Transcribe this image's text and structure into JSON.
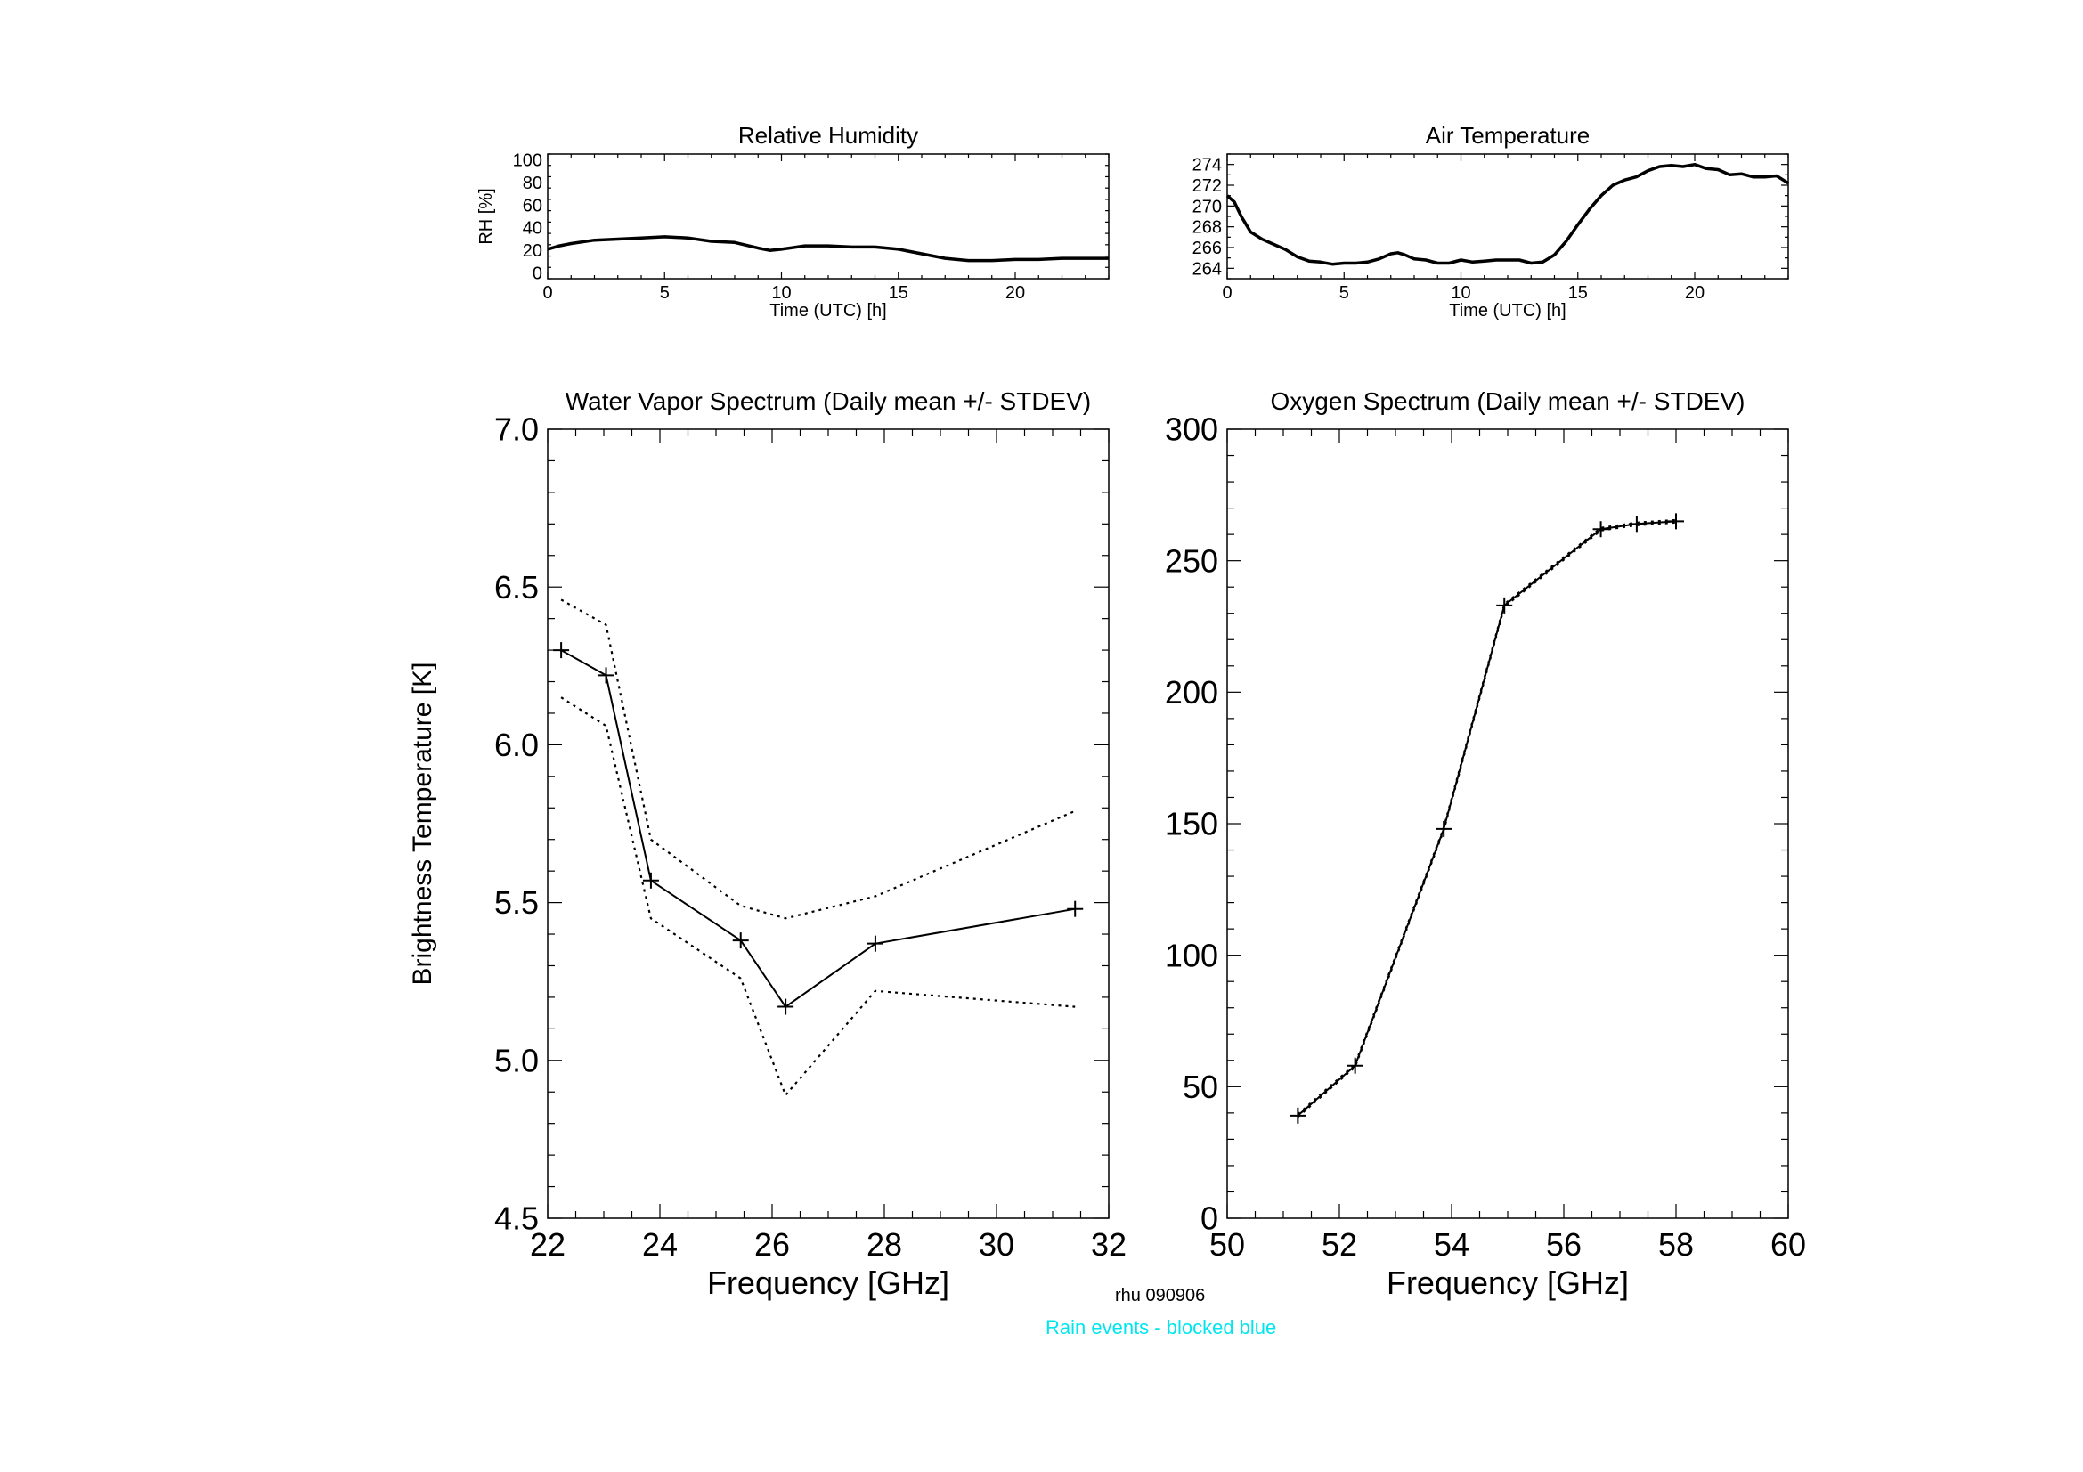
{
  "footer": {
    "id_label": "rhu 090906",
    "note": "Rain events - blocked blue",
    "note_color": "#00e5ee"
  },
  "chart_data": [
    {
      "type": "line",
      "title": "Relative Humidity",
      "xlabel": "Time (UTC) [h]",
      "ylabel": "RH [%]",
      "xlim": [
        0,
        24
      ],
      "ylim": [
        -5,
        105
      ],
      "xticks": [
        "0",
        "5",
        "10",
        "15",
        "20"
      ],
      "yticks": [
        "0",
        "20",
        "40",
        "60",
        "80",
        "100"
      ],
      "series": [
        {
          "x": [
            0,
            0.5,
            1,
            2,
            3,
            4,
            5,
            6,
            7,
            8,
            9,
            9.5,
            10,
            11,
            12,
            13,
            14,
            15,
            16,
            17,
            18,
            19,
            20,
            21,
            22,
            23,
            24
          ],
          "values": [
            21,
            24,
            26,
            29,
            30,
            31,
            32,
            31,
            28,
            27,
            22,
            20,
            21,
            24,
            24,
            23,
            23,
            21,
            17,
            13,
            11,
            11,
            12,
            12,
            13,
            13,
            13
          ]
        }
      ]
    },
    {
      "type": "line",
      "title": "Air Temperature",
      "xlabel": "Time (UTC) [h]",
      "ylabel": "",
      "xlim": [
        0,
        24
      ],
      "ylim": [
        263,
        275
      ],
      "xticks": [
        "0",
        "5",
        "10",
        "15",
        "20"
      ],
      "yticks": [
        "264",
        "266",
        "268",
        "270",
        "272",
        "274"
      ],
      "series": [
        {
          "x": [
            0,
            0.3,
            0.6,
            1,
            1.5,
            2,
            2.5,
            3,
            3.5,
            4,
            4.5,
            5,
            5.5,
            6,
            6.5,
            7,
            7.3,
            7.6,
            8,
            8.5,
            9,
            9.5,
            10,
            10.5,
            11,
            11.5,
            12,
            12.5,
            13,
            13.5,
            14,
            14.5,
            15,
            15.5,
            16,
            16.5,
            17,
            17.5,
            18,
            18.5,
            19,
            19.5,
            20,
            20.5,
            21,
            21.5,
            22,
            22.5,
            23,
            23.5,
            24
          ],
          "values": [
            271,
            270.4,
            269,
            267.5,
            266.8,
            266.3,
            265.8,
            265.1,
            264.7,
            264.6,
            264.4,
            264.5,
            264.5,
            264.6,
            264.9,
            265.4,
            265.5,
            265.3,
            264.9,
            264.8,
            264.5,
            264.5,
            264.8,
            264.6,
            264.7,
            264.8,
            264.8,
            264.8,
            264.5,
            264.6,
            265.3,
            266.6,
            268.2,
            269.7,
            271.0,
            272.0,
            272.5,
            272.8,
            273.4,
            273.8,
            273.9,
            273.8,
            274.0,
            273.6,
            273.5,
            273.0,
            273.1,
            272.8,
            272.8,
            272.9,
            272.2
          ]
        }
      ]
    },
    {
      "type": "line",
      "title": "Water Vapor Spectrum (Daily mean +/- STDEV)",
      "xlabel": "Frequency [GHz]",
      "ylabel": "Brightness Temperature [K]",
      "xlim": [
        22,
        32
      ],
      "ylim": [
        4.5,
        7.0
      ],
      "xticks": [
        "22",
        "24",
        "26",
        "28",
        "30",
        "32"
      ],
      "yticks": [
        "4.5",
        "5.0",
        "5.5",
        "6.0",
        "6.5",
        "7.0"
      ],
      "series": [
        {
          "style": "solid-markers",
          "x": [
            22.24,
            23.04,
            23.84,
            25.44,
            26.24,
            27.84,
            31.4
          ],
          "values": [
            6.3,
            6.22,
            5.57,
            5.38,
            5.17,
            5.37,
            5.48
          ]
        },
        {
          "style": "dotted",
          "x": [
            22.24,
            23.04,
            23.84,
            25.44,
            26.24,
            27.84,
            31.4
          ],
          "values": [
            6.46,
            6.38,
            5.7,
            5.49,
            5.45,
            5.52,
            5.79
          ]
        },
        {
          "style": "dotted",
          "x": [
            22.24,
            23.04,
            23.84,
            25.44,
            26.24,
            27.84,
            31.4
          ],
          "values": [
            6.15,
            6.06,
            5.45,
            5.26,
            4.89,
            5.22,
            5.17
          ]
        }
      ]
    },
    {
      "type": "line",
      "title": "Oxygen Spectrum (Daily mean +/- STDEV)",
      "xlabel": "Frequency [GHz]",
      "ylabel": "",
      "xlim": [
        50,
        60
      ],
      "ylim": [
        0,
        300
      ],
      "xticks": [
        "50",
        "52",
        "54",
        "56",
        "58",
        "60"
      ],
      "yticks": [
        "0",
        "50",
        "100",
        "150",
        "200",
        "250",
        "300"
      ],
      "series": [
        {
          "style": "solid-markers",
          "x": [
            51.26,
            52.28,
            53.86,
            54.94,
            56.66,
            57.3,
            58.0
          ],
          "values": [
            39,
            58,
            148,
            233,
            262,
            264,
            265
          ]
        },
        {
          "style": "dotted",
          "x": [
            51.26,
            52.28,
            53.86,
            54.94,
            56.66,
            57.3,
            58.0
          ],
          "values": [
            39.5,
            58.5,
            148.5,
            233.5,
            262.5,
            264.5,
            265.5
          ]
        },
        {
          "style": "dotted",
          "x": [
            51.26,
            52.28,
            53.86,
            54.94,
            56.66,
            57.3,
            58.0
          ],
          "values": [
            38.5,
            57.5,
            147.5,
            232.5,
            261.5,
            263.5,
            264.5
          ]
        }
      ]
    }
  ]
}
